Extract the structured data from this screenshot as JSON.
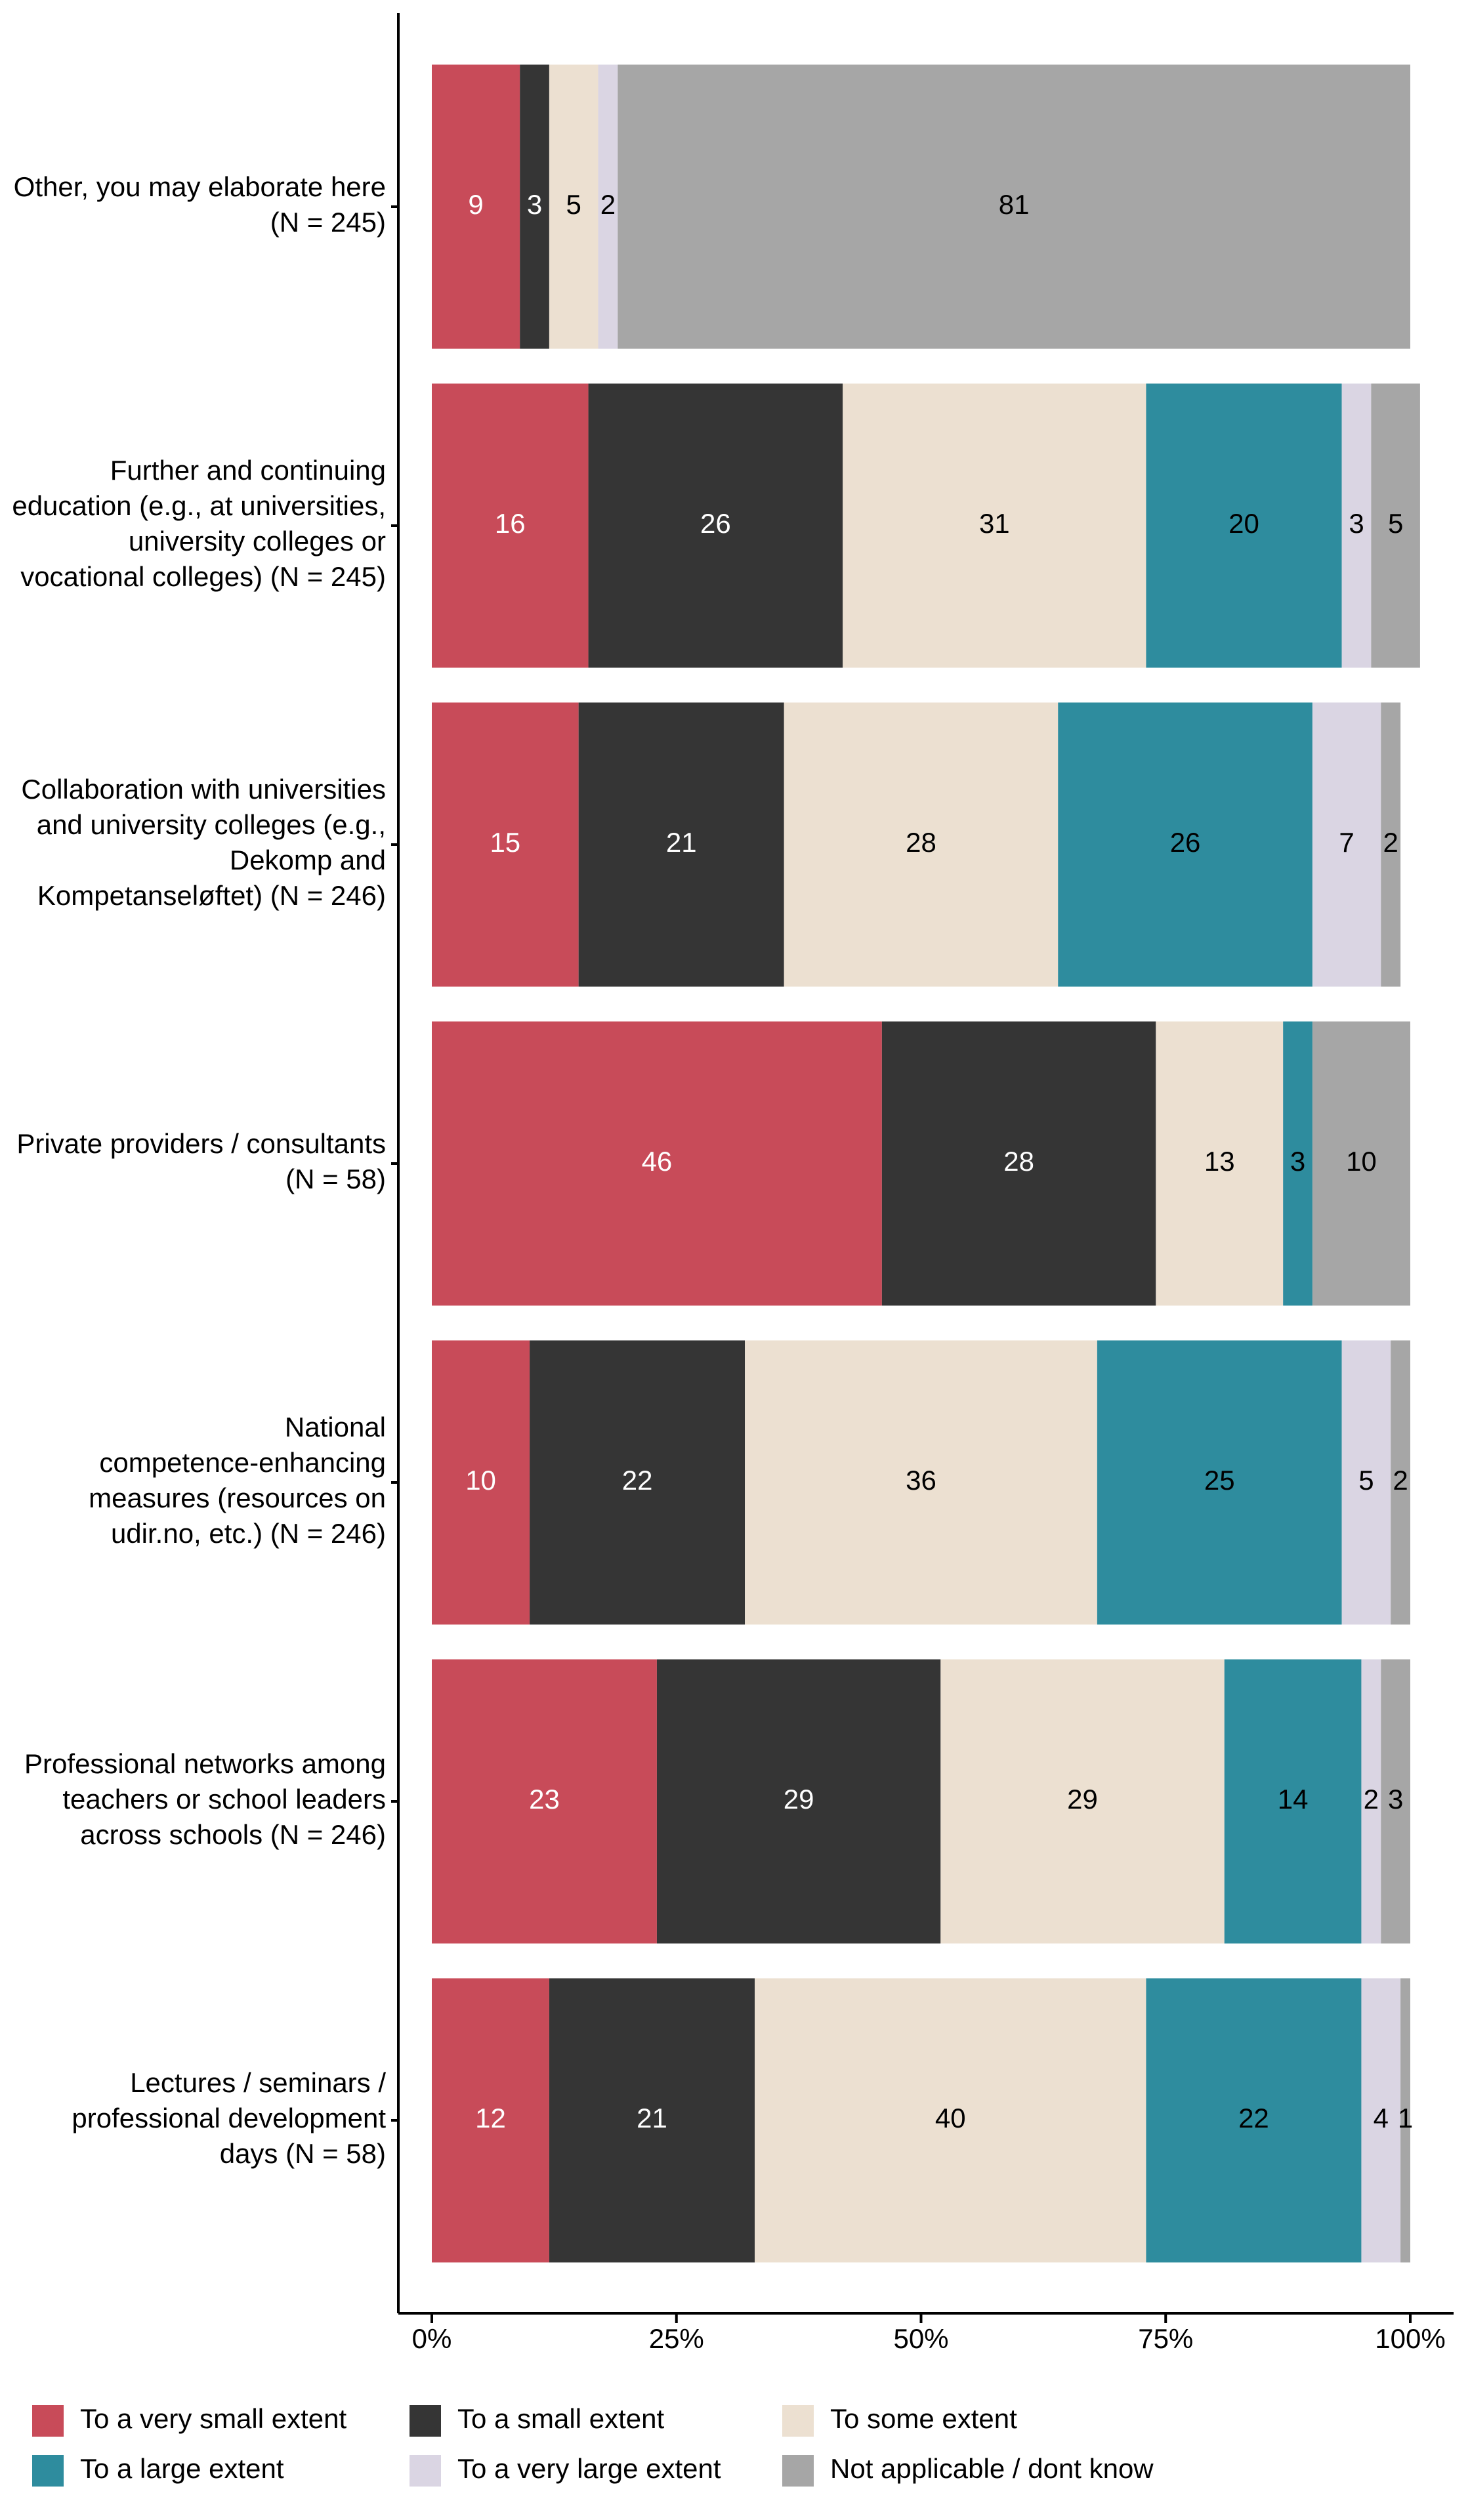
{
  "chart_data": {
    "type": "stacked-bar-horizontal",
    "categories": [
      "Other, you may elaborate here (N = 245)",
      "Further and continuing education (e.g., at universities, university colleges or vocational colleges) (N = 245)",
      "Collaboration with universities and university colleges (e.g., Dekomp and Kompetanseløftet) (N = 246)",
      "Private providers / consultants (N = 58)",
      "National competence-enhancing measures (resources on udir.no, etc.) (N = 246)",
      "Professional networks among teachers or school leaders across schools (N = 246)",
      "Lectures / seminars / professional development days (N = 58)"
    ],
    "series": [
      {
        "name": "To a very small extent",
        "color": "#c84b59",
        "values": [
          9,
          16,
          15,
          46,
          10,
          23,
          12
        ]
      },
      {
        "name": "To a small extent",
        "color": "#353535",
        "values": [
          3,
          26,
          21,
          28,
          22,
          29,
          21
        ]
      },
      {
        "name": "To some extent",
        "color": "#ece0d1",
        "values": [
          5,
          31,
          28,
          13,
          36,
          29,
          40
        ]
      },
      {
        "name": "To a large extent",
        "color": "#2e8c9e",
        "values": [
          null,
          20,
          26,
          3,
          25,
          14,
          22
        ]
      },
      {
        "name": "To a very large extent",
        "color": "#dad5e3",
        "values": [
          2,
          3,
          7,
          null,
          5,
          2,
          4
        ]
      },
      {
        "name": "Not applicable / dont know",
        "color": "#a6a6a6",
        "values": [
          81,
          5,
          2,
          10,
          2,
          3,
          1
        ]
      }
    ],
    "xlim": [
      0,
      100
    ],
    "xticks": [
      {
        "value": 0,
        "label": "0%"
      },
      {
        "value": 25,
        "label": "25%"
      },
      {
        "value": 50,
        "label": "50%"
      },
      {
        "value": 75,
        "label": "75%"
      },
      {
        "value": 100,
        "label": "100%"
      }
    ],
    "legend": "bottom"
  }
}
